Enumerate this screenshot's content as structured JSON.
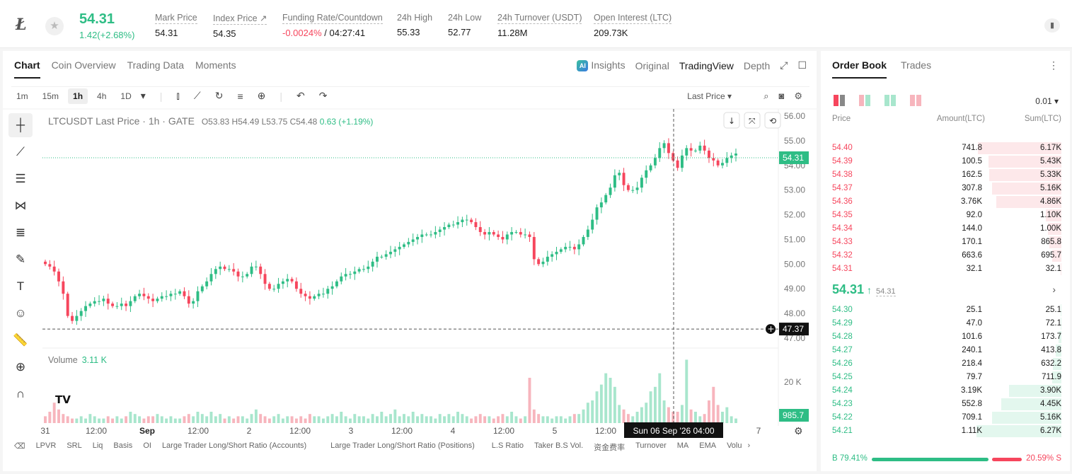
{
  "header": {
    "coin_symbol": "Ł",
    "price": "54.31",
    "change": "1.42(+2.68%)",
    "stats": [
      {
        "label": "Mark Price",
        "value": "54.31"
      },
      {
        "label": "Index Price ↗",
        "value": "54.35"
      },
      {
        "label": "Funding Rate/Countdown",
        "value_neg": "-0.0024%",
        "value_rest": " / 04:27:41"
      },
      {
        "label": "24h High",
        "value": "55.33"
      },
      {
        "label": "24h Low",
        "value": "52.77"
      },
      {
        "label": "24h Turnover (USDT)",
        "value": "11.28M"
      },
      {
        "label": "Open Interest (LTC)",
        "value": "209.73K"
      }
    ]
  },
  "chart_tabs": [
    "Chart",
    "Coin Overview",
    "Trading Data",
    "Moments"
  ],
  "view_tabs": {
    "insights": "Insights",
    "original": "Original",
    "tradingview": "TradingView",
    "depth": "Depth",
    "ai": "AI"
  },
  "timeframes": [
    "1m",
    "15m",
    "1h",
    "4h",
    "1D"
  ],
  "price_source": "Last Price ▾",
  "legend": {
    "title": "LTCUSDT Last Price · 1h · GATE",
    "o": "O53.83",
    "h": "H54.49",
    "l": "L53.75",
    "c": "C54.48",
    "chg": "0.63 (+1.19%)"
  },
  "volume_legend": {
    "label": "Volume",
    "value": "3.11 K"
  },
  "crosshair_date": "Sun 06 Sep '26   04:00",
  "indicators": [
    "LPVR",
    "SRL",
    "Liq",
    "Basis",
    "OI",
    "Large Trader Long/Short Ratio (Accounts)",
    "Large Trader Long/Short Ratio (Positions)",
    "L.S Ratio",
    "Taker B.S Vol.",
    "资金费率",
    "Turnover",
    "MA",
    "EMA",
    "Volu"
  ],
  "chart_data": {
    "type": "candlestick",
    "y_axis_ticks": [
      "56.00",
      "55.00",
      "54.00",
      "53.00",
      "52.00",
      "51.00",
      "50.00",
      "49.00",
      "48.00",
      "47.00"
    ],
    "ylim": [
      47.0,
      56.0
    ],
    "last_price_label": "54.31",
    "crosshair_price_label": "47.37",
    "volume_axis_tick": "20 K",
    "volume_last_label": "985.7",
    "x_ticks": [
      "31",
      "12:00",
      "Sep",
      "12:00",
      "2",
      "12:00",
      "3",
      "12:00",
      "4",
      "12:00",
      "5",
      "12:00",
      "7"
    ],
    "close_series": [
      50.0,
      49.9,
      49.7,
      49.3,
      48.8,
      47.9,
      47.7,
      47.9,
      48.1,
      48.3,
      48.4,
      48.5,
      48.5,
      48.6,
      48.4,
      48.3,
      48.3,
      48.4,
      48.3,
      48.5,
      48.7,
      48.8,
      48.7,
      48.6,
      48.5,
      48.6,
      48.7,
      48.7,
      48.8,
      48.8,
      48.9,
      48.7,
      48.4,
      48.5,
      48.9,
      49.1,
      49.3,
      49.6,
      49.8,
      49.9,
      49.8,
      49.8,
      49.7,
      49.5,
      49.5,
      49.6,
      49.9,
      49.9,
      49.6,
      49.2,
      49.0,
      49.0,
      49.2,
      49.3,
      49.4,
      49.3,
      49.0,
      48.8,
      48.7,
      48.6,
      48.7,
      48.8,
      48.8,
      49.0,
      49.1,
      49.3,
      49.5,
      49.6,
      49.6,
      49.7,
      49.8,
      49.8,
      49.9,
      50.1,
      50.3,
      50.3,
      50.4,
      50.5,
      50.6,
      50.7,
      50.8,
      50.9,
      51.0,
      51.1,
      51.2,
      51.2,
      51.2,
      51.3,
      51.4,
      51.5,
      51.6,
      51.6,
      51.7,
      51.8,
      51.8,
      51.7,
      51.5,
      51.3,
      51.2,
      51.3,
      51.2,
      51.1,
      51.0,
      51.2,
      51.3,
      51.3,
      51.2,
      51.2,
      51.1,
      50.2,
      50.0,
      50.1,
      50.3,
      50.4,
      50.5,
      50.6,
      50.7,
      50.7,
      50.6,
      50.8,
      51.1,
      51.4,
      51.8,
      52.3,
      52.5,
      52.8,
      53.1,
      53.6,
      53.7,
      53.2,
      53.0,
      53.0,
      53.1,
      53.5,
      53.8,
      54.0,
      54.3,
      54.7,
      54.9,
      54.5,
      54.2,
      53.9,
      54.4,
      54.7,
      54.6,
      54.6,
      54.8,
      54.6,
      54.3,
      54.2,
      54.0,
      54.1,
      54.3,
      54.4,
      54.48
    ],
    "volume_series": [
      3,
      5,
      9,
      6,
      4,
      3,
      2,
      2,
      3,
      2,
      4,
      3,
      2,
      2,
      3,
      2,
      3,
      2,
      3,
      5,
      4,
      3,
      2,
      3,
      3,
      4,
      3,
      2,
      3,
      2,
      2,
      3,
      4,
      3,
      5,
      4,
      3,
      5,
      3,
      4,
      2,
      3,
      2,
      3,
      3,
      2,
      4,
      6,
      4,
      3,
      2,
      3,
      4,
      2,
      3,
      3,
      2,
      3,
      2,
      4,
      3,
      3,
      2,
      3,
      4,
      3,
      5,
      3,
      2,
      4,
      3,
      3,
      2,
      4,
      3,
      5,
      3,
      4,
      6,
      3,
      4,
      3,
      5,
      3,
      4,
      3,
      3,
      2,
      4,
      3,
      4,
      3,
      5,
      4,
      3,
      2,
      3,
      4,
      3,
      3,
      2,
      3,
      4,
      3,
      5,
      3,
      2,
      3,
      20,
      6,
      4,
      3,
      3,
      2,
      3,
      3,
      2,
      3,
      4,
      4,
      6,
      9,
      10,
      14,
      17,
      22,
      20,
      16,
      8,
      6,
      4,
      3,
      5,
      7,
      9,
      14,
      16,
      22,
      10,
      7,
      5,
      5,
      8,
      28,
      6,
      5,
      3,
      4,
      10,
      16,
      8,
      5,
      7,
      3,
      2
    ]
  },
  "orderbook": {
    "tabs": [
      "Order Book",
      "Trades"
    ],
    "precision": "0.01 ▾",
    "headers": {
      "price": "Price",
      "amount": "Amount(LTC)",
      "sum": "Sum(LTC)"
    },
    "asks": [
      {
        "price": "54.40",
        "amount": "741.8",
        "sum": "6.17K",
        "depth": 0.98
      },
      {
        "price": "54.39",
        "amount": "100.5",
        "sum": "5.43K",
        "depth": 0.86
      },
      {
        "price": "54.38",
        "amount": "162.5",
        "sum": "5.33K",
        "depth": 0.85
      },
      {
        "price": "54.37",
        "amount": "307.8",
        "sum": "5.16K",
        "depth": 0.82
      },
      {
        "price": "54.36",
        "amount": "3.76K",
        "sum": "4.86K",
        "depth": 0.77
      },
      {
        "price": "54.35",
        "amount": "92.0",
        "sum": "1.10K",
        "depth": 0.18
      },
      {
        "price": "54.34",
        "amount": "144.0",
        "sum": "1.00K",
        "depth": 0.16
      },
      {
        "price": "54.33",
        "amount": "170.1",
        "sum": "865.8",
        "depth": 0.14
      },
      {
        "price": "54.32",
        "amount": "663.6",
        "sum": "695.7",
        "depth": 0.11
      },
      {
        "price": "54.31",
        "amount": "32.1",
        "sum": "32.1",
        "depth": 0.01
      }
    ],
    "mid": {
      "price": "54.31",
      "arrow": "↑",
      "mark": "54.31",
      "chev": "›"
    },
    "bids": [
      {
        "price": "54.30",
        "amount": "25.1",
        "sum": "25.1",
        "depth": 0.01
      },
      {
        "price": "54.29",
        "amount": "47.0",
        "sum": "72.1",
        "depth": 0.01
      },
      {
        "price": "54.28",
        "amount": "101.6",
        "sum": "173.7",
        "depth": 0.03
      },
      {
        "price": "54.27",
        "amount": "240.1",
        "sum": "413.8",
        "depth": 0.07
      },
      {
        "price": "54.26",
        "amount": "218.4",
        "sum": "632.2",
        "depth": 0.1
      },
      {
        "price": "54.25",
        "amount": "79.7",
        "sum": "711.9",
        "depth": 0.11
      },
      {
        "price": "54.24",
        "amount": "3.19K",
        "sum": "3.90K",
        "depth": 0.62
      },
      {
        "price": "54.23",
        "amount": "552.8",
        "sum": "4.45K",
        "depth": 0.71
      },
      {
        "price": "54.22",
        "amount": "709.1",
        "sum": "5.16K",
        "depth": 0.82
      },
      {
        "price": "54.21",
        "amount": "1.11K",
        "sum": "6.27K",
        "depth": 1.0
      }
    ],
    "ratio": {
      "buy": "B 79.41%",
      "sell": "20.59% S"
    }
  },
  "colors": {
    "up": "#2ebd85",
    "down": "#f6465d",
    "up_vol": "#a8e6cd",
    "down_vol": "#f7b5bd"
  }
}
